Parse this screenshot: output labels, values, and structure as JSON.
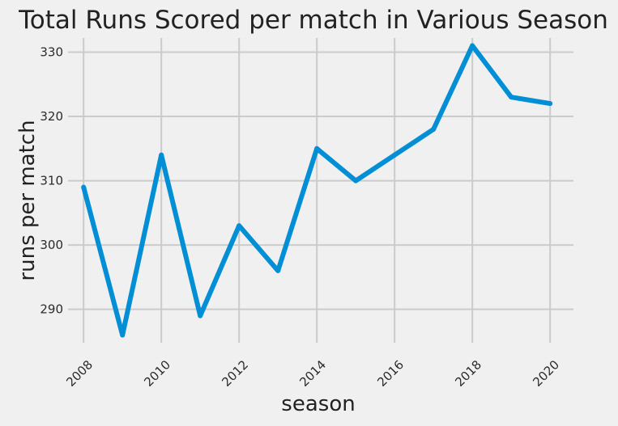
{
  "chart_data": {
    "type": "line",
    "title": "Total Runs Scored per match in Various Season",
    "xlabel": "season",
    "ylabel": "runs per match",
    "x": [
      2008,
      2009,
      2010,
      2011,
      2012,
      2013,
      2014,
      2015,
      2016,
      2017,
      2018,
      2019,
      2020
    ],
    "series": [
      {
        "values": [
          309,
          286,
          314,
          289,
          303,
          296,
          315,
          310,
          314,
          318,
          331,
          323,
          322
        ]
      }
    ],
    "xlim": [
      2007.6,
      2020.6
    ],
    "ylim": [
      284.8,
      332.2
    ],
    "xticks": [
      2008,
      2010,
      2012,
      2014,
      2016,
      2018,
      2020
    ],
    "yticks": [
      290,
      300,
      310,
      320,
      330
    ],
    "grid": true,
    "line_color": "#008fd5"
  }
}
